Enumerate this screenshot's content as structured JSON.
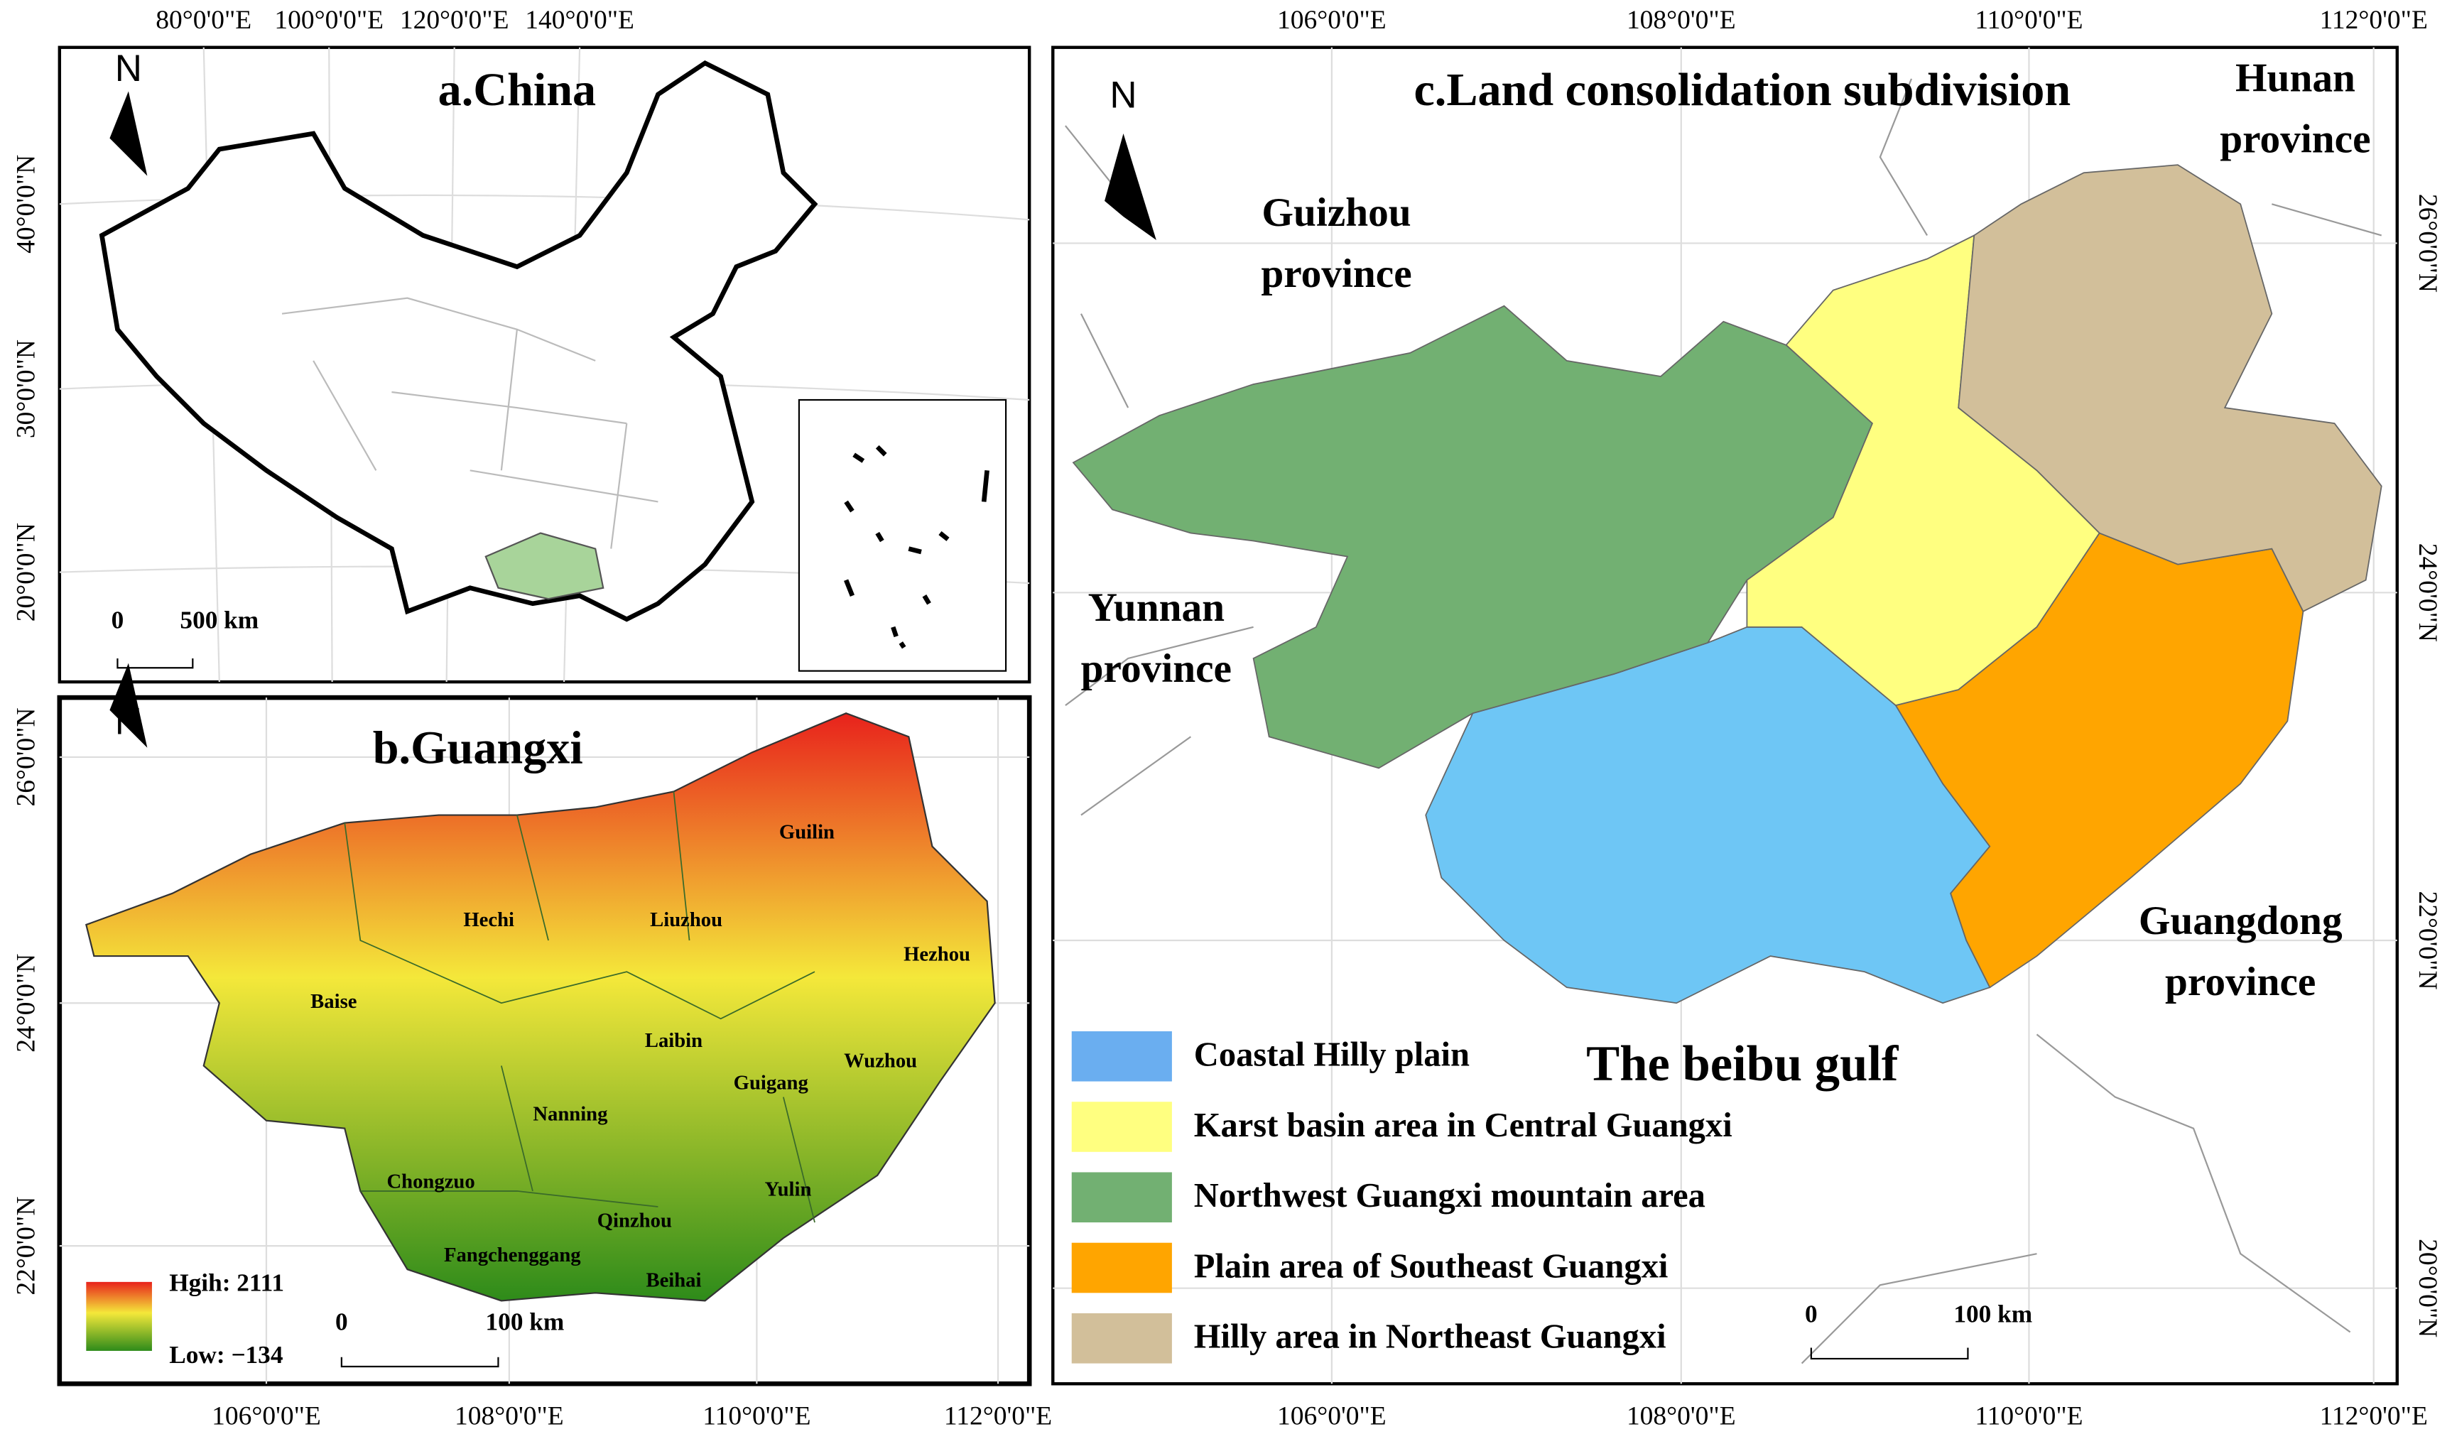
{
  "panels": [
    {
      "title": "a.China",
      "north": "N",
      "scale": [
        "0",
        "500 km"
      ],
      "top_ticks": [
        "80°0'0\"E",
        "100°0'0\"E",
        "120°0'0\"E",
        "140°0'0\"E"
      ],
      "left_ticks": [
        "40°0'0\"N",
        "30°0'0\"N",
        "20°0'0\"N"
      ]
    },
    {
      "title": "b.Guangxi",
      "north": "N",
      "scale": [
        "0",
        "100 km"
      ],
      "left_ticks": [
        "26°0'0\"N",
        "24°0'0\"N",
        "22°0'0\"N"
      ],
      "bottom_ticks": [
        "106°0'0\"E",
        "108°0'0\"E",
        "110°0'0\"E",
        "112°0'0\"E"
      ],
      "cities": [
        "Guilin",
        "Hechi",
        "Liuzhou",
        "Hezhou",
        "Baise",
        "Laibin",
        "Wuzhou",
        "Guigang",
        "Nanning",
        "Chongzuo",
        "Yulin",
        "Qinzhou",
        "Fangchenggang",
        "Beihai"
      ],
      "legend": [
        "Hgih: 2111",
        "Low: −134"
      ]
    },
    {
      "title": "c.Land consolidation subdivision",
      "north": "N",
      "scale": [
        "0",
        "100 km"
      ],
      "top_ticks": [
        "106°0'0\"E",
        "108°0'0\"E",
        "110°0'0\"E",
        "112°0'0\"E"
      ],
      "bottom_ticks": [
        "106°0'0\"E",
        "108°0'0\"E",
        "110°0'0\"E",
        "112°0'0\"E"
      ],
      "right_ticks": [
        "26°0'0\"N",
        "24°0'0\"N",
        "22°0'0\"N",
        "20°0'0\"N"
      ],
      "places": [
        {
          "lines": [
            "Guizhou",
            "province"
          ]
        },
        {
          "lines": [
            "Hunan",
            "province"
          ]
        },
        {
          "lines": [
            "Yunnan",
            "province"
          ]
        },
        {
          "lines": [
            "Guangdong",
            "province"
          ]
        },
        {
          "lines": [
            "The beibu gulf"
          ]
        }
      ],
      "legend": [
        {
          "label": "Coastal Hilly plain",
          "color": "#6ec6f5"
        },
        {
          "label": "Karst basin area in Central Guangxi",
          "color": "#ffff80"
        },
        {
          "label": "Northwest Guangxi mountain area",
          "color": "#72b072"
        },
        {
          "label": "Plain area of Southeast Guangxi",
          "color": "#ffa500"
        },
        {
          "label": "Hilly area in Northeast Guangxi",
          "color": "#d2bf9a"
        }
      ]
    }
  ]
}
